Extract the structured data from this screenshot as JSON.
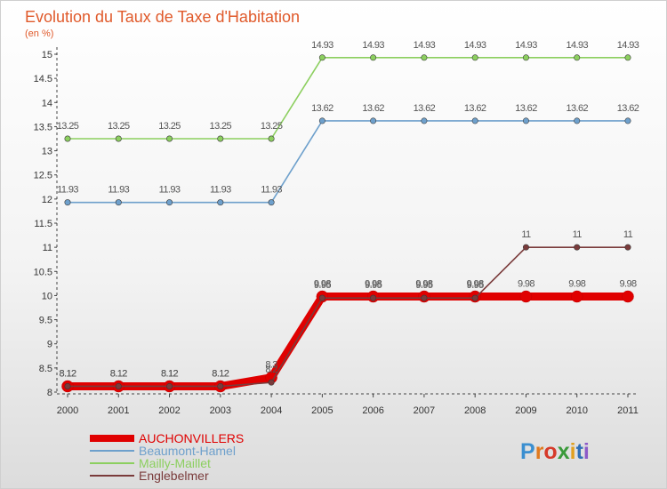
{
  "chart_data": {
    "type": "line",
    "title": "Evolution du Taux de Taxe d'Habitation",
    "subtitle": "(en %)",
    "x": [
      "2000",
      "2001",
      "2002",
      "2003",
      "2004",
      "2005",
      "2006",
      "2007",
      "2008",
      "2009",
      "2010",
      "2011"
    ],
    "ylim": [
      8,
      15
    ],
    "yticks": [
      "8",
      "8.5",
      "9",
      "9.5",
      "10",
      "10.5",
      "11",
      "11.5",
      "12",
      "12.5",
      "13",
      "13.5",
      "14",
      "14.5",
      "15"
    ],
    "grid": false,
    "legend_position": "bottom-left",
    "series": [
      {
        "name": "AUCHONVILLERS",
        "color": "#e00000",
        "values": [
          8.12,
          8.12,
          8.12,
          8.12,
          8.3,
          9.98,
          9.98,
          9.98,
          9.98,
          9.98,
          9.98,
          9.98
        ],
        "labels": [
          "8.12",
          "8.12",
          "8.12",
          "8.12",
          "8.3",
          "9.98",
          "9.98",
          "9.98",
          "9.98",
          "9.98",
          "9.98",
          "9.98"
        ]
      },
      {
        "name": "Beaumont-Hamel",
        "color": "#6ea0cc",
        "values": [
          11.93,
          11.93,
          11.93,
          11.93,
          11.93,
          13.62,
          13.62,
          13.62,
          13.62,
          13.62,
          13.62,
          13.62
        ],
        "labels": [
          "11.93",
          "11.93",
          "11.93",
          "11.93",
          "11.93",
          "13.62",
          "13.62",
          "13.62",
          "13.62",
          "13.62",
          "13.62",
          "13.62"
        ]
      },
      {
        "name": "Mailly-Maillet",
        "color": "#8ccf5f",
        "values": [
          13.25,
          13.25,
          13.25,
          13.25,
          13.25,
          14.93,
          14.93,
          14.93,
          14.93,
          14.93,
          14.93,
          14.93
        ],
        "labels": [
          "13.25",
          "13.25",
          "13.25",
          "13.25",
          "13.25",
          "14.93",
          "14.93",
          "14.93",
          "14.93",
          "14.93",
          "14.93",
          "14.93"
        ]
      },
      {
        "name": "Englebelmer",
        "color": "#7a3b3b",
        "values": [
          8.12,
          8.12,
          8.12,
          8.12,
          8.2,
          9.95,
          9.95,
          9.95,
          9.95,
          11,
          11,
          11
        ],
        "labels": [
          "8.12",
          "8.12",
          "8.12",
          "8.12",
          "8.2",
          "9.95",
          "9.95",
          "9.95",
          "9.95",
          "11",
          "11",
          "11"
        ]
      }
    ]
  },
  "logo": {
    "letters": [
      "P",
      "r",
      "o",
      "x",
      "i",
      "t",
      "i"
    ],
    "colors": [
      "#3b8fd0",
      "#e07a1f",
      "#d63a2a",
      "#3a9a3a",
      "#e0a020",
      "#2f6fb5",
      "#8c5ac8"
    ]
  }
}
